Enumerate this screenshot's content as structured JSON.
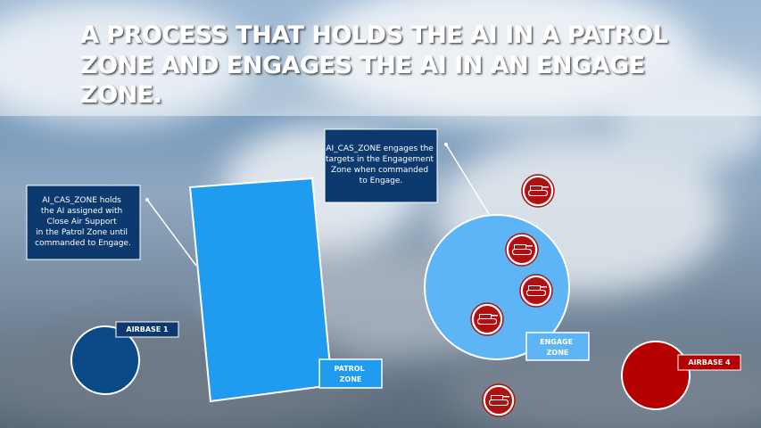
{
  "header": {
    "title_lines": [
      "A PROCESS THAT HOLDS THE AI IN A PATROL",
      "ZONE AND ENGAGES THE AI IN AN ENGAGE",
      "ZONE."
    ]
  },
  "callouts": [
    {
      "lines": [
        "AI_CAS_ZONE holds",
        "the AI assigned with",
        "Close Air Support",
        "in the Patrol Zone until",
        "commanded to Engage."
      ]
    },
    {
      "lines": [
        "AI_CAS_ZONE engages the",
        "targets in the Engagement",
        "Zone when commanded",
        "to Engage."
      ]
    }
  ],
  "labels": {
    "patrol_zone": [
      "PATROL",
      "ZONE"
    ],
    "engage_zone": [
      "ENGAGE",
      "ZONE"
    ],
    "airbase_1": "AIRBASE 1",
    "airbase_4": "AIRBASE 4"
  }
}
